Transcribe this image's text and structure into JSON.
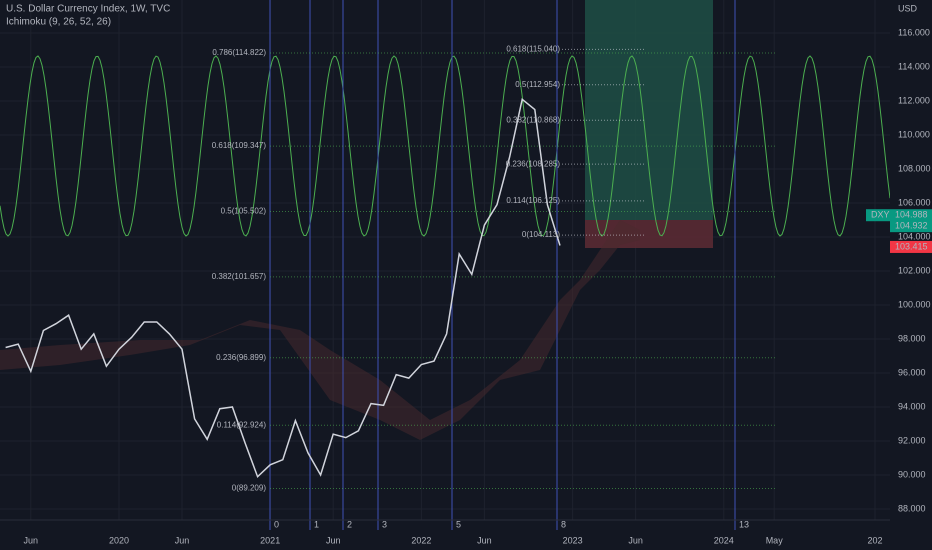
{
  "header": {
    "title": "U.S. Dollar Currency Index, 1W, TVC",
    "indicator": "Ichimoku (9, 26, 52, 26)"
  },
  "price_axis": {
    "unit": "USD",
    "ticks": [
      {
        "value": 116,
        "label": "116.000"
      },
      {
        "value": 114,
        "label": "114.000"
      },
      {
        "value": 112,
        "label": "112.000"
      },
      {
        "value": 110,
        "label": "110.000"
      },
      {
        "value": 108,
        "label": "108.000"
      },
      {
        "value": 106,
        "label": "106.000"
      },
      {
        "value": 104,
        "label": "104.000"
      },
      {
        "value": 102,
        "label": "102.000"
      },
      {
        "value": 100,
        "label": "100.000"
      },
      {
        "value": 98,
        "label": "98.000"
      },
      {
        "value": 96,
        "label": "96.000"
      },
      {
        "value": 94,
        "label": "94.000"
      },
      {
        "value": 92,
        "label": "92.000"
      },
      {
        "value": 90,
        "label": "90.000"
      },
      {
        "value": 88,
        "label": "88.000"
      }
    ],
    "tags": [
      {
        "name": "DXY",
        "value": 104.988,
        "label": "104.988"
      },
      {
        "value": 104.932,
        "label": "104.932"
      },
      {
        "value": 103.415,
        "label": "103.415"
      }
    ]
  },
  "chart_data": {
    "type": "line",
    "categories": [
      null,
      null,
      "Jun",
      null,
      null,
      null,
      null,
      null,
      null,
      "2020",
      null,
      null,
      null,
      null,
      "Jun",
      null,
      null,
      null,
      null,
      null,
      null,
      "2021",
      null,
      null,
      null,
      null,
      "Jun",
      null,
      null,
      null,
      null,
      null,
      null,
      "2022",
      null,
      null,
      null,
      null,
      "Jun",
      null,
      null,
      null,
      null,
      null,
      null,
      "2023",
      null,
      null,
      null,
      null,
      "Jun",
      null,
      null,
      null,
      null,
      null,
      null,
      "2024",
      null,
      null,
      null,
      "May",
      null,
      null,
      null,
      null,
      null,
      null,
      null,
      "202"
    ],
    "series": [
      {
        "name": "DXY",
        "color": "#d1d4dc",
        "values": [
          97.5,
          97.7,
          96.1,
          98.5,
          98.9,
          99.4,
          97.4,
          98.3,
          96.4,
          97.4,
          98.1,
          99.0,
          99.0,
          98.3,
          97.4,
          93.3,
          92.1,
          93.9,
          94.0,
          91.9,
          89.9,
          90.6,
          90.9,
          93.2,
          91.3,
          90.0,
          92.4,
          92.2,
          92.6,
          94.2,
          94.1,
          95.9,
          95.7,
          96.5,
          96.7,
          98.3,
          103.0,
          101.8,
          104.7,
          105.9,
          108.7,
          112.1,
          111.5,
          105.9,
          103.5,
          null,
          null,
          null,
          null,
          null,
          null,
          null,
          null,
          null,
          null,
          null,
          null,
          null,
          null,
          null,
          null,
          null,
          null,
          null,
          null,
          null,
          null,
          null,
          null,
          null
        ]
      }
    ]
  },
  "fib_left": [
    {
      "value": 114.822,
      "label": "0.786(114.822)"
    },
    {
      "value": 109.347,
      "label": "0.618(109.347)"
    },
    {
      "value": 105.502,
      "label": "0.5(105.502)"
    },
    {
      "value": 101.657,
      "label": "0.382(101.657)"
    },
    {
      "value": 96.899,
      "label": "0.236(96.899)"
    },
    {
      "value": 92.924,
      "label": "0.114(92.924)"
    },
    {
      "value": 89.209,
      "label": "0(89.209)"
    }
  ],
  "fib_right": [
    {
      "value": 115.04,
      "label": "0.618(115.040)"
    },
    {
      "value": 112.954,
      "label": "0.5(112.954)"
    },
    {
      "value": 110.868,
      "label": "0.382(110.868)"
    },
    {
      "value": 108.285,
      "label": "0.236(108.285)"
    },
    {
      "value": 106.125,
      "label": "0.114(106.125)"
    },
    {
      "value": 104.113,
      "label": "0(104.113)"
    }
  ],
  "time_zones": [
    "0",
    "1",
    "2",
    "3",
    "5",
    "8",
    "13"
  ]
}
